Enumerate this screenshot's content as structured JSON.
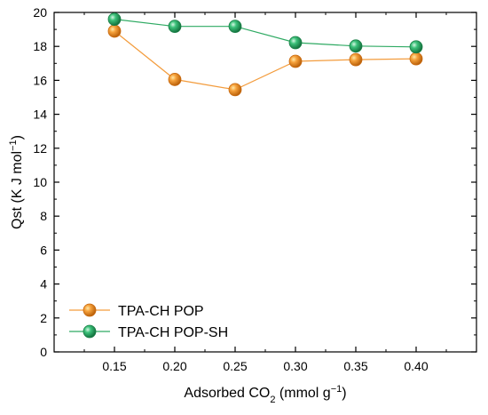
{
  "chart_data": {
    "type": "line",
    "x": [
      0.15,
      0.2,
      0.25,
      0.3,
      0.35,
      0.4
    ],
    "x_tick_labels": [
      "0.15",
      "0.20",
      "0.25",
      "0.30",
      "0.35",
      "0.40"
    ],
    "xlim": [
      0.1,
      0.45
    ],
    "ylim": [
      0,
      20
    ],
    "y_ticks": [
      0,
      2,
      4,
      6,
      8,
      10,
      12,
      14,
      16,
      18,
      20
    ],
    "y_tick_labels": [
      "0",
      "2",
      "4",
      "6",
      "8",
      "10",
      "12",
      "14",
      "16",
      "18",
      "20"
    ],
    "xlabel": {
      "pre": "Adsorbed CO",
      "sub": "2",
      "post": " (mmol g",
      "sup": "−1",
      "end": ")"
    },
    "ylabel": {
      "pre": "Qst (K J mol",
      "sup": "−1",
      "end": ")"
    },
    "legend_position": "lower-left",
    "grid": false,
    "series": [
      {
        "name": "TPA-CH POP",
        "color": "#f39c3d",
        "marker_color": "#f08a1c",
        "values": [
          18.9,
          16.05,
          15.45,
          17.12,
          17.22,
          17.27
        ]
      },
      {
        "name": "TPA-CH POP-SH",
        "color": "#2faa63",
        "marker_color": "#2fa868",
        "values": [
          19.6,
          19.18,
          19.18,
          18.22,
          18.02,
          17.97
        ]
      }
    ]
  }
}
